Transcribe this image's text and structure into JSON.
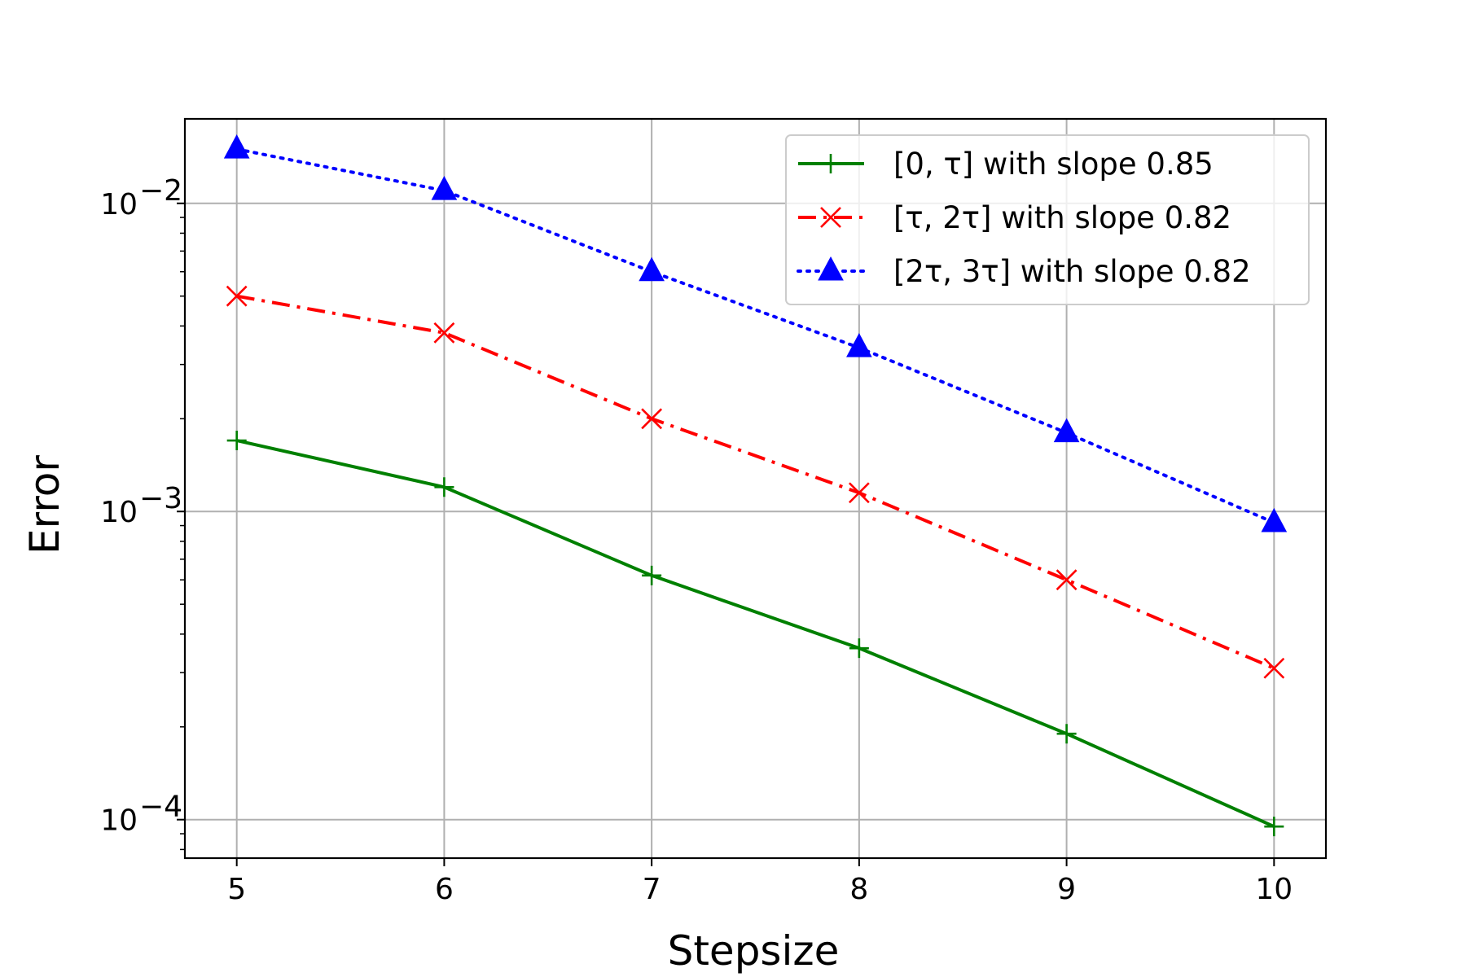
{
  "chart_data": {
    "type": "line",
    "title": "",
    "xlabel": "Stepsize",
    "ylabel": "Error",
    "x": [
      5,
      6,
      7,
      8,
      9,
      10
    ],
    "xticks": [
      "5",
      "6",
      "7",
      "8",
      "9",
      "10"
    ],
    "yscale": "log",
    "xlim": [
      4.75,
      10.25
    ],
    "ylim": [
      7.5e-05,
      0.0188
    ],
    "yticks": [
      {
        "value": 0.01,
        "base": "10",
        "exp": "−2"
      },
      {
        "value": 0.001,
        "base": "10",
        "exp": "−3"
      },
      {
        "value": 0.0001,
        "base": "10",
        "exp": "−4"
      }
    ],
    "grid": true,
    "legend_position": "top-right",
    "series": [
      {
        "name": "[0, τ] with slope 0.85",
        "color": "#008000",
        "linestyle": "solid",
        "marker": "plus",
        "values": [
          0.0017,
          0.0012,
          0.00062,
          0.00036,
          0.00019,
          9.5e-05
        ]
      },
      {
        "name": "[τ, 2τ] with slope 0.82",
        "color": "#ff0000",
        "linestyle": "dashdot",
        "marker": "x",
        "values": [
          0.005,
          0.0038,
          0.002,
          0.00115,
          0.0006,
          0.00031
        ]
      },
      {
        "name": "[2τ, 3τ] with slope 0.82",
        "color": "#0000ff",
        "linestyle": "dotted",
        "marker": "triangle",
        "values": [
          0.015,
          0.011,
          0.006,
          0.0034,
          0.0018,
          0.00092
        ]
      }
    ]
  }
}
